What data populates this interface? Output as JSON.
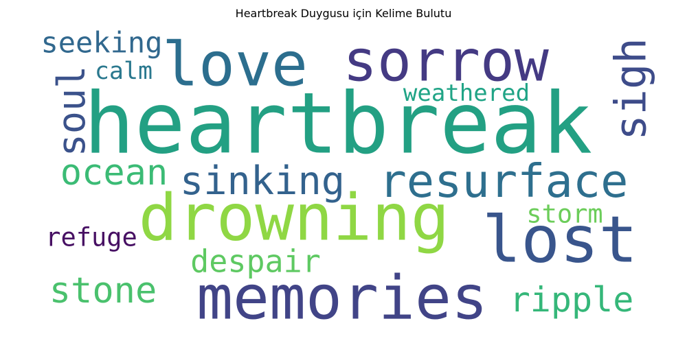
{
  "chart_data": {
    "type": "wordcloud",
    "title": "Heartbreak Duygusu için Kelime Bulutu",
    "words": [
      {
        "text": "heartbreak",
        "color": "#23a083"
      },
      {
        "text": "sorrow",
        "color": "#443a83"
      },
      {
        "text": "love",
        "color": "#2c6e8e"
      },
      {
        "text": "drowning",
        "color": "#8fd744"
      },
      {
        "text": "memories",
        "color": "#414487"
      },
      {
        "text": "resurface",
        "color": "#2e6f8e"
      },
      {
        "text": "lost",
        "color": "#39558c"
      },
      {
        "text": "sinking",
        "color": "#33628d"
      },
      {
        "text": "ocean",
        "color": "#3bbb75"
      },
      {
        "text": "despair",
        "color": "#5ec962"
      },
      {
        "text": "stone",
        "color": "#4ac16d"
      },
      {
        "text": "ripple",
        "color": "#35b779"
      },
      {
        "text": "soul",
        "color": "#3b528b"
      },
      {
        "text": "sigh",
        "color": "#3e4c8a"
      },
      {
        "text": "seeking",
        "color": "#31688e"
      },
      {
        "text": "calm",
        "color": "#2a788e"
      },
      {
        "text": "weathered",
        "color": "#20a486"
      },
      {
        "text": "refuge",
        "color": "#471063"
      },
      {
        "text": "storm",
        "color": "#6ccd5a"
      }
    ]
  }
}
